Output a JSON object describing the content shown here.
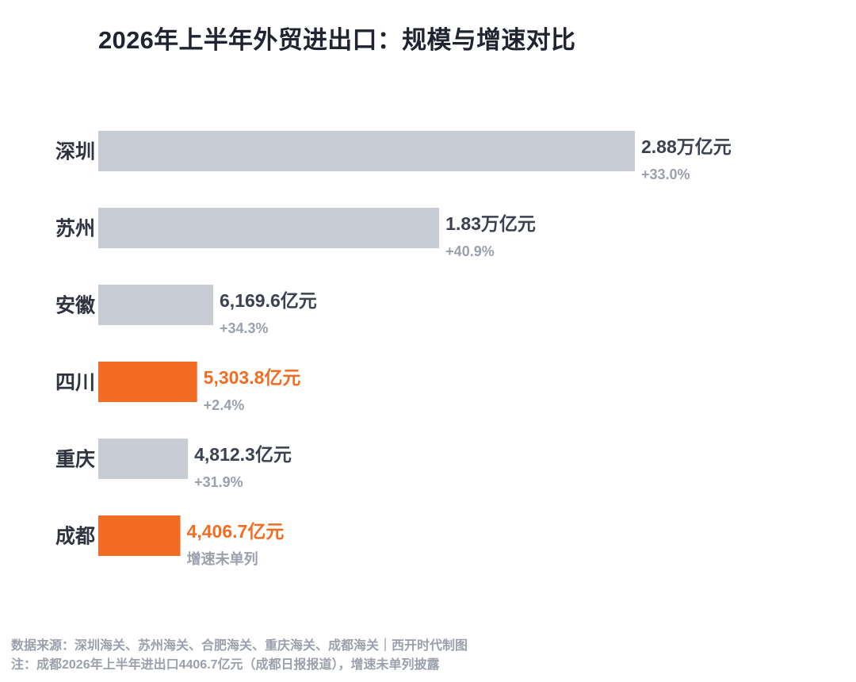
{
  "chart_data": {
    "type": "bar",
    "orientation": "horizontal",
    "title": "2026年上半年外贸进出口：规模与增速对比",
    "categories": [
      "深圳",
      "苏州",
      "安徽",
      "四川",
      "重庆",
      "成都"
    ],
    "values": [
      28800,
      18300,
      6169.6,
      5303.8,
      4812.3,
      4406.7
    ],
    "unit": "亿元",
    "value_labels": [
      "2.88万亿元",
      "1.83万亿元",
      "6,169.6亿元",
      "5,303.8亿元",
      "4,812.3亿元",
      "4,406.7亿元"
    ],
    "growth_labels": [
      "+33.0%",
      "+40.9%",
      "+34.3%",
      "+2.4%",
      "+31.9%",
      "增速未单列"
    ],
    "highlight": [
      false,
      false,
      false,
      true,
      false,
      true
    ],
    "xlim": [
      0,
      28800
    ],
    "grid": false,
    "legend": "none"
  },
  "colors": {
    "bar_default": "#c7ccd5",
    "bar_highlight": "#f26c23",
    "label_default": "#3b4150",
    "label_highlight": "#f26c23",
    "growth_text": "#9aa1ad",
    "category_text": "#2f3440"
  },
  "footer": {
    "source": "数据来源：深圳海关、苏州海关、合肥海关、重庆海关、成都海关｜西开时代制图",
    "note": "注：成都2026年上半年进出口4406.7亿元（成都日报报道），增速未单列披露"
  }
}
